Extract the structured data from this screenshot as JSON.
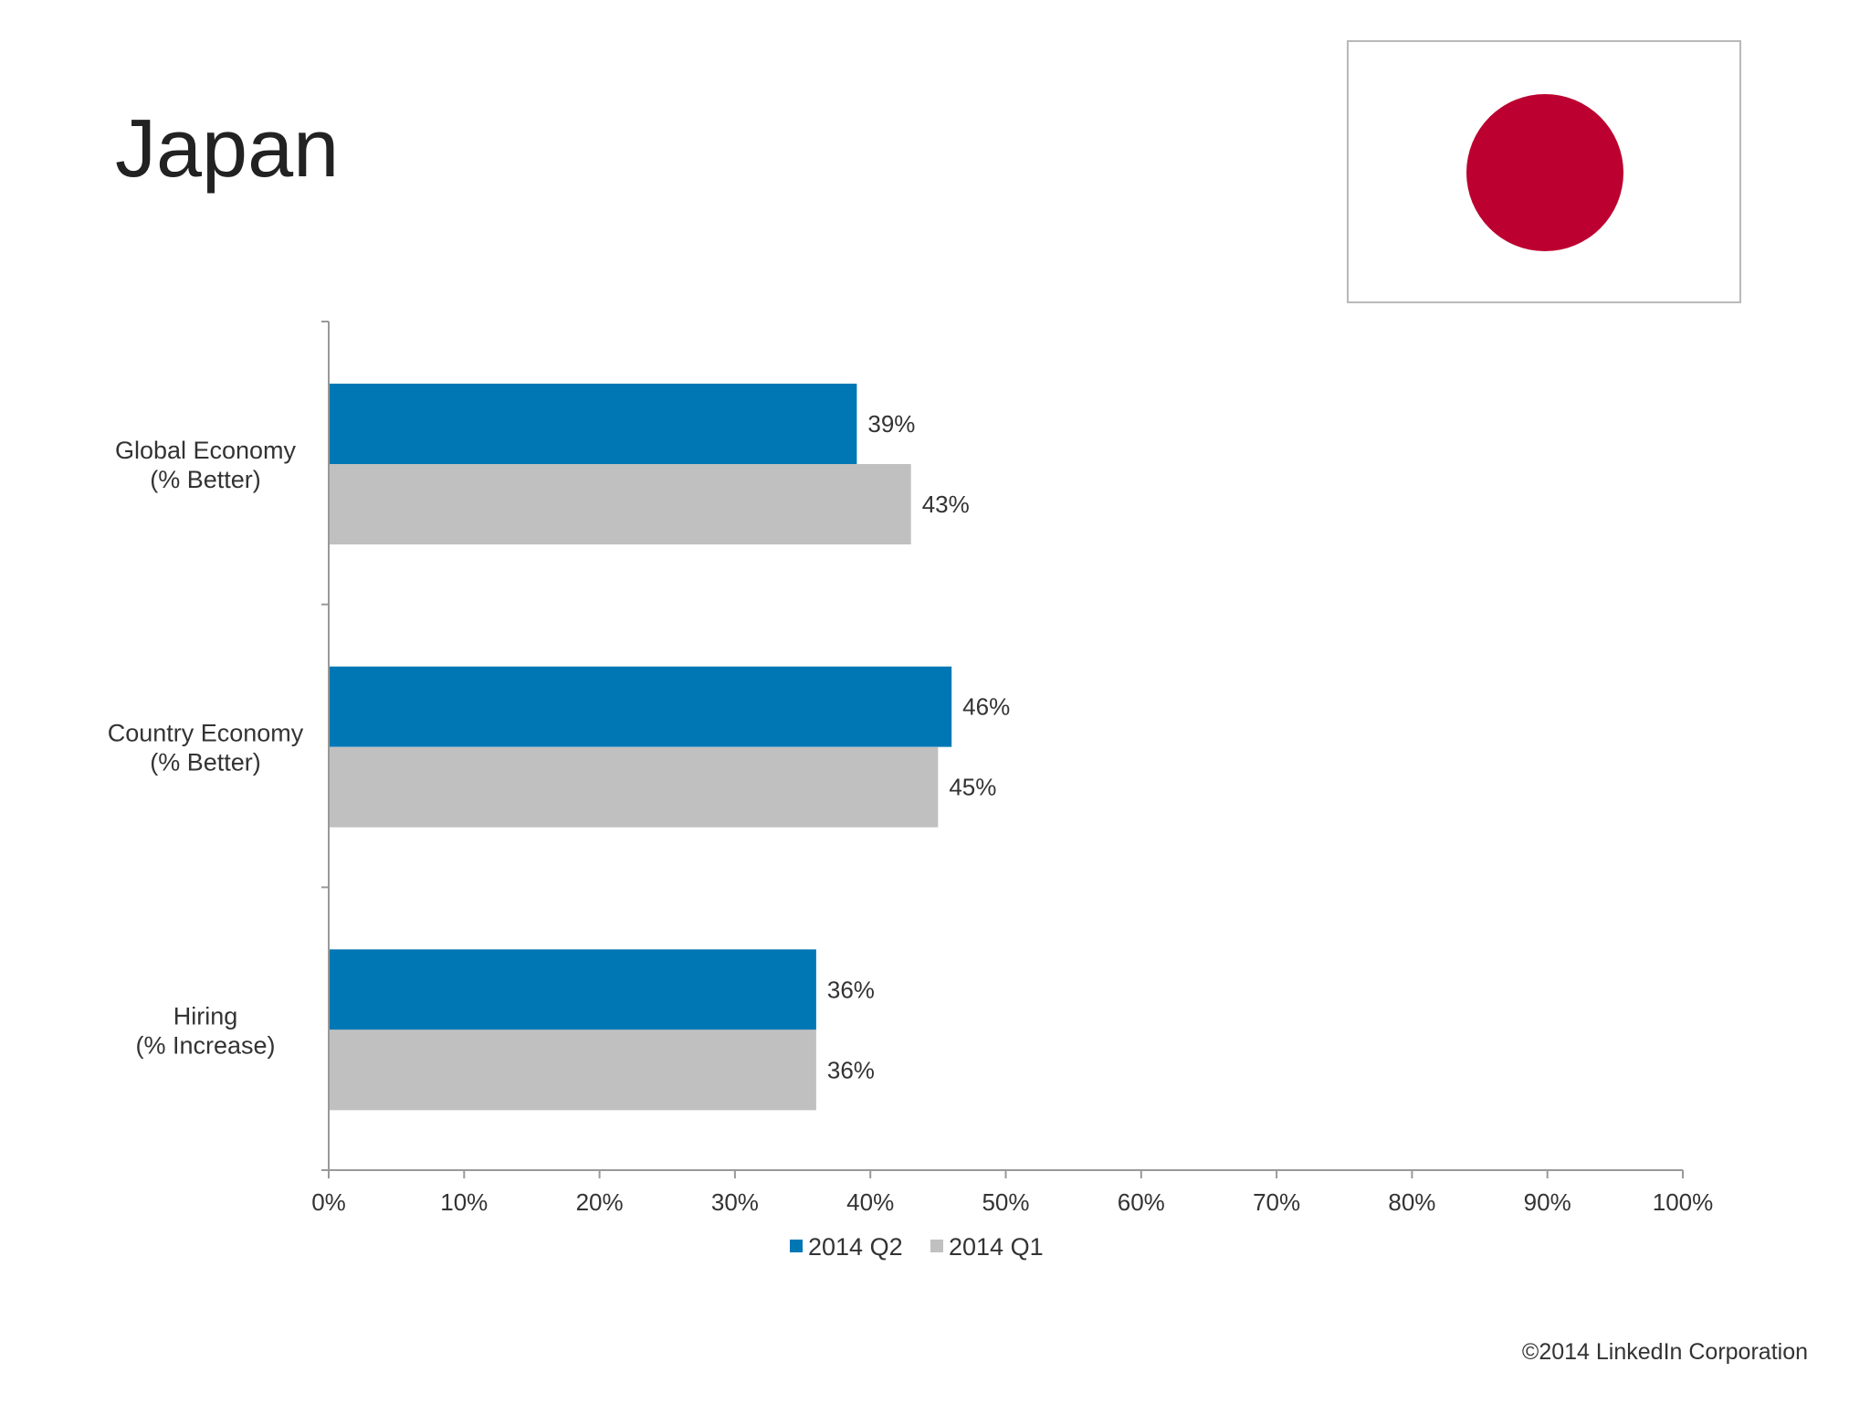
{
  "slide": {
    "title": "Japan",
    "copyright": "©2014 LinkedIn Corporation"
  },
  "flag": {
    "icon": "japan-flag-icon",
    "background": "#ffffff",
    "disc_color": "#bc0030"
  },
  "colors": {
    "q2": "#0077b5",
    "q1": "#c0c0c0"
  },
  "chart_data": {
    "type": "bar",
    "orientation": "horizontal",
    "categories": [
      [
        "Global Economy",
        "(% Better)"
      ],
      [
        "Country Economy",
        "(% Better)"
      ],
      [
        "Hiring",
        "(% Increase)"
      ]
    ],
    "series": [
      {
        "name": "2014 Q2",
        "values": [
          39,
          46,
          36
        ],
        "labels": [
          "39%",
          "46%",
          "36%"
        ],
        "color": "#0077b5"
      },
      {
        "name": "2014 Q1",
        "values": [
          43,
          45,
          36
        ],
        "labels": [
          "43%",
          "45%",
          "36%"
        ],
        "color": "#c0c0c0"
      }
    ],
    "xlim": [
      0,
      100
    ],
    "xticks": [
      "0%",
      "10%",
      "20%",
      "30%",
      "40%",
      "50%",
      "60%",
      "70%",
      "80%",
      "90%",
      "100%"
    ],
    "grid": false,
    "legend_position": "bottom-center"
  }
}
